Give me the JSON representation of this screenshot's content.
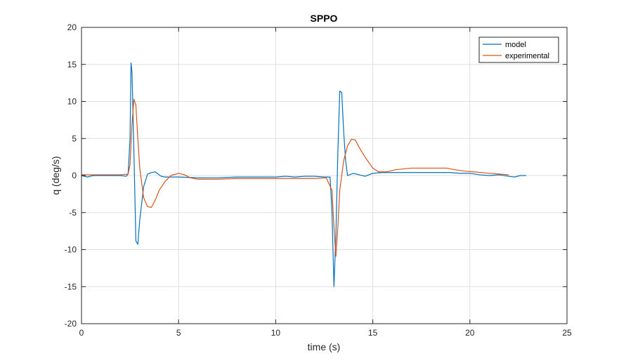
{
  "chart_data": {
    "type": "line",
    "title": "SPPO",
    "xlabel": "time (s)",
    "ylabel": "q (deg/s)",
    "xlim": [
      0,
      25
    ],
    "ylim": [
      -20,
      20
    ],
    "xticks": [
      0,
      5,
      10,
      15,
      20,
      25
    ],
    "yticks": [
      -20,
      -15,
      -10,
      -5,
      0,
      5,
      10,
      15,
      20
    ],
    "grid": true,
    "legend_position": "top-right",
    "series": [
      {
        "name": "model",
        "color": "#0072BD",
        "x": [
          0,
          0.3,
          0.6,
          1.0,
          1.5,
          2.0,
          2.3,
          2.4,
          2.5,
          2.55,
          2.6,
          2.7,
          2.8,
          2.9,
          3.0,
          3.2,
          3.4,
          3.6,
          3.8,
          3.9,
          4.1,
          4.3,
          5.0,
          6.0,
          7.0,
          8.0,
          9.0,
          10.0,
          10.5,
          11.0,
          11.5,
          12.0,
          12.5,
          12.8,
          12.9,
          13.0,
          13.1,
          13.2,
          13.3,
          13.4,
          13.5,
          13.6,
          13.7,
          14.0,
          14.3,
          14.6,
          15.0,
          15.5,
          16.0,
          17.0,
          18.0,
          19.0,
          19.5,
          20.0,
          20.5,
          21.0,
          21.5,
          22.0,
          22.3,
          22.6,
          22.9
        ],
        "y": [
          0.0,
          -0.2,
          0.0,
          0.0,
          0.0,
          0.0,
          -0.1,
          0.2,
          5.0,
          15.2,
          14.0,
          3.0,
          -8.8,
          -9.3,
          -6.0,
          -1.5,
          0.2,
          0.4,
          0.5,
          0.3,
          -0.1,
          -0.2,
          -0.2,
          -0.3,
          -0.3,
          -0.2,
          -0.2,
          -0.2,
          -0.1,
          -0.2,
          -0.1,
          -0.1,
          -0.2,
          -0.2,
          -5.0,
          -15.0,
          -8.0,
          3.0,
          11.4,
          11.2,
          6.0,
          2.0,
          0.0,
          0.3,
          0.1,
          -0.1,
          0.3,
          0.4,
          0.4,
          0.4,
          0.4,
          0.4,
          0.3,
          0.3,
          0.1,
          0.0,
          0.1,
          -0.1,
          -0.2,
          0.0,
          0.0
        ]
      },
      {
        "name": "experimental",
        "color": "#D95319",
        "x": [
          0,
          1.0,
          2.0,
          2.4,
          2.5,
          2.6,
          2.7,
          2.8,
          2.9,
          3.0,
          3.2,
          3.4,
          3.6,
          3.8,
          4.0,
          4.3,
          4.6,
          5.0,
          5.3,
          5.6,
          6.0,
          7.0,
          8.0,
          9.0,
          10.0,
          11.0,
          12.0,
          12.6,
          12.9,
          13.0,
          13.1,
          13.2,
          13.3,
          13.5,
          13.7,
          13.9,
          14.1,
          14.3,
          14.6,
          15.0,
          15.3,
          15.7,
          16.2,
          17.0,
          18.0,
          18.8,
          19.2,
          19.7,
          20.2,
          21.0,
          21.5,
          22.0
        ],
        "y": [
          0.1,
          0.1,
          0.1,
          0.2,
          1.5,
          7.0,
          10.3,
          9.5,
          5.0,
          1.0,
          -3.0,
          -4.2,
          -4.3,
          -3.3,
          -2.0,
          -0.8,
          0.0,
          0.3,
          0.1,
          -0.3,
          -0.5,
          -0.5,
          -0.4,
          -0.4,
          -0.4,
          -0.4,
          -0.4,
          -0.3,
          -2.0,
          -7.0,
          -10.9,
          -7.0,
          -2.0,
          2.0,
          4.0,
          4.9,
          4.8,
          3.8,
          2.5,
          1.0,
          0.5,
          0.5,
          0.8,
          1.0,
          1.0,
          1.0,
          0.8,
          0.6,
          0.5,
          0.3,
          0.2,
          0.1
        ]
      }
    ]
  }
}
